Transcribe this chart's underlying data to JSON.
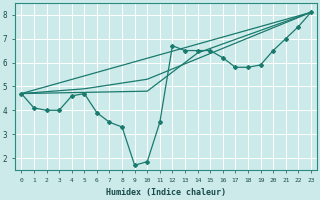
{
  "xlabel": "Humidex (Indice chaleur)",
  "bg_color": "#cceaea",
  "grid_color": "#b0d8d8",
  "line_color": "#1a7a6e",
  "xlim": [
    -0.5,
    23.5
  ],
  "ylim": [
    1.5,
    8.5
  ],
  "xticks": [
    0,
    1,
    2,
    3,
    4,
    5,
    6,
    7,
    8,
    9,
    10,
    11,
    12,
    13,
    14,
    15,
    16,
    17,
    18,
    19,
    20,
    21,
    22,
    23
  ],
  "yticks": [
    2,
    3,
    4,
    5,
    6,
    7,
    8
  ],
  "main_x": [
    0,
    1,
    2,
    3,
    4,
    5,
    6,
    7,
    8,
    9,
    10,
    11,
    12,
    13,
    14,
    15,
    16,
    17,
    18,
    19,
    20,
    21,
    22,
    23
  ],
  "main_y": [
    4.7,
    4.1,
    4.0,
    4.0,
    4.6,
    4.7,
    3.9,
    3.5,
    3.3,
    1.7,
    1.85,
    3.5,
    6.7,
    6.5,
    6.5,
    6.5,
    6.2,
    5.8,
    5.8,
    5.9,
    6.5,
    7.0,
    7.5,
    8.1
  ],
  "line1_x": [
    0,
    23
  ],
  "line1_y": [
    4.7,
    8.1
  ],
  "line2_x": [
    0,
    5,
    10,
    23
  ],
  "line2_y": [
    4.7,
    4.9,
    5.3,
    8.1
  ],
  "line3_x": [
    0,
    10,
    14,
    23
  ],
  "line3_y": [
    4.7,
    4.8,
    6.4,
    8.1
  ]
}
